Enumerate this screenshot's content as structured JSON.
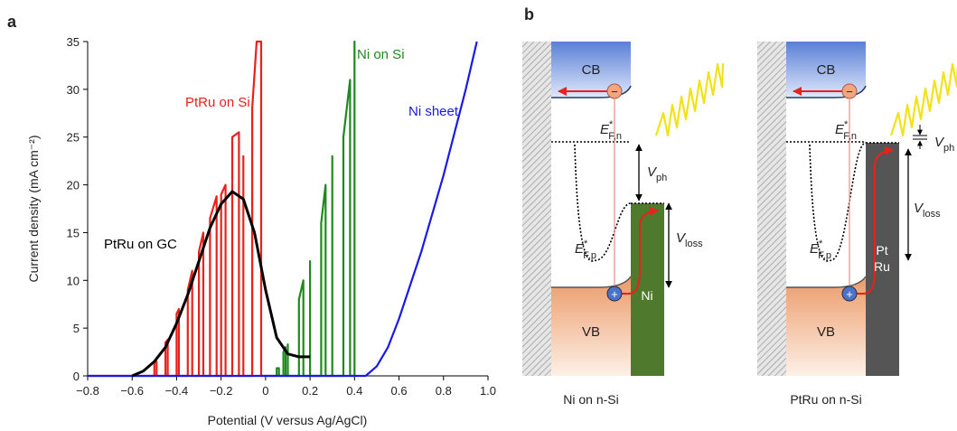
{
  "panel_a_label": "a",
  "chart_data": {
    "type": "line",
    "xlabel": "Potential (V versus Ag/AgCl)",
    "ylabel": "Current density (mA cm⁻²)",
    "xlim": [
      -0.8,
      1.0
    ],
    "xticks": [
      {
        "value": -0.8,
        "label": "−0.8"
      },
      {
        "value": -0.6,
        "label": "−0.6"
      },
      {
        "value": -0.4,
        "label": "−0.4"
      },
      {
        "value": -0.2,
        "label": "−0.2"
      },
      0,
      0.2,
      0.4,
      0.6,
      0.8,
      {
        "value": 1.0,
        "label": "1.0"
      }
    ],
    "ylim": [
      0,
      35
    ],
    "yticks": [
      0,
      5,
      10,
      15,
      20,
      25,
      30,
      35
    ],
    "series": [
      {
        "name": "PtRu on Si",
        "color": "#e8221b",
        "x": [
          -0.8,
          -0.5,
          -0.5,
          -0.49,
          -0.49,
          -0.45,
          -0.45,
          -0.44,
          -0.44,
          -0.4,
          -0.4,
          -0.39,
          -0.39,
          -0.35,
          -0.35,
          -0.33,
          -0.33,
          -0.3,
          -0.3,
          -0.28,
          -0.28,
          -0.25,
          -0.25,
          -0.22,
          -0.22,
          -0.2,
          -0.2,
          -0.18,
          -0.18,
          -0.15,
          -0.15,
          -0.12,
          -0.12,
          -0.1,
          -0.1,
          -0.1,
          -0.06,
          -0.06,
          -0.04,
          -0.02,
          -0.02,
          0.0
        ],
        "values": [
          0,
          0,
          1.5,
          1.5,
          0,
          0,
          3.5,
          3.8,
          0,
          0,
          6.5,
          7,
          0,
          0,
          9,
          11,
          0,
          0,
          13,
          15,
          0,
          0,
          16.5,
          18.8,
          0,
          0,
          19,
          20,
          0,
          0,
          25,
          25.5,
          0,
          0,
          23,
          0,
          0,
          28,
          35,
          35,
          0,
          0
        ]
      },
      {
        "name": "Ni on Si",
        "color": "#1e8a1e",
        "x": [
          0,
          0.05,
          0.05,
          0.06,
          0.06,
          0.08,
          0.08,
          0.09,
          0.09,
          0.1,
          0.1,
          0.1,
          0.15,
          0.15,
          0.17,
          0.17,
          0.2,
          0.2,
          0.2,
          0.25,
          0.25,
          0.27,
          0.27,
          0.3,
          0.3,
          0.3,
          0.35,
          0.35,
          0.38,
          0.38,
          0.4,
          0.4,
          0.4
        ],
        "values": [
          0,
          0,
          0.8,
          0.8,
          0,
          0,
          2.5,
          3,
          0,
          0,
          3.3,
          0,
          0,
          8,
          10,
          0,
          0,
          12,
          0,
          0,
          16,
          20,
          0,
          0,
          23,
          0,
          0,
          25,
          31,
          0,
          0,
          35,
          0
        ]
      },
      {
        "name": "Ni sheet",
        "color": "#1a1ae6",
        "x": [
          -0.8,
          0.45,
          0.5,
          0.55,
          0.6,
          0.65,
          0.7,
          0.75,
          0.8,
          0.85,
          0.9,
          0.95
        ],
        "values": [
          0,
          0,
          1,
          3,
          6,
          9.5,
          13,
          17,
          21,
          25.5,
          30,
          35
        ]
      },
      {
        "name": "PtRu on GC",
        "color": "#000000",
        "x": [
          -0.6,
          -0.55,
          -0.5,
          -0.45,
          -0.4,
          -0.35,
          -0.3,
          -0.25,
          -0.2,
          -0.15,
          -0.1,
          -0.05,
          0,
          0.05,
          0.1,
          0.15,
          0.2
        ],
        "values": [
          0,
          0.5,
          1.5,
          3,
          5.5,
          8.5,
          12,
          15.5,
          18,
          19.3,
          18.5,
          15,
          9,
          4,
          2.3,
          2,
          2
        ]
      }
    ]
  },
  "panel_b": {
    "label": "b",
    "diagrams": [
      {
        "caption": "Ni on n-Si",
        "cb": "CB",
        "vb": "VB",
        "electron": "−",
        "hole": "+",
        "efn": {
          "symbol": "E",
          "sup": "*",
          "sub": "F,n"
        },
        "efp": {
          "symbol": "E",
          "sup": "*",
          "sub": "F,p"
        },
        "vph": {
          "symbol": "V",
          "sub": "ph"
        },
        "vloss": {
          "symbol": "V",
          "sub": "loss"
        },
        "metal": [
          "Ni"
        ]
      },
      {
        "caption": "PtRu on n-Si",
        "cb": "CB",
        "vb": "VB",
        "electron": "−",
        "hole": "+",
        "efn": {
          "symbol": "E",
          "sup": "*",
          "sub": "F,n"
        },
        "efp": {
          "symbol": "E",
          "sup": "*",
          "sub": "F,p"
        },
        "vph": {
          "symbol": "V",
          "sub": "ph"
        },
        "vloss": {
          "symbol": "V",
          "sub": "loss"
        },
        "metal": [
          "Pt",
          "Ru"
        ]
      }
    ]
  }
}
